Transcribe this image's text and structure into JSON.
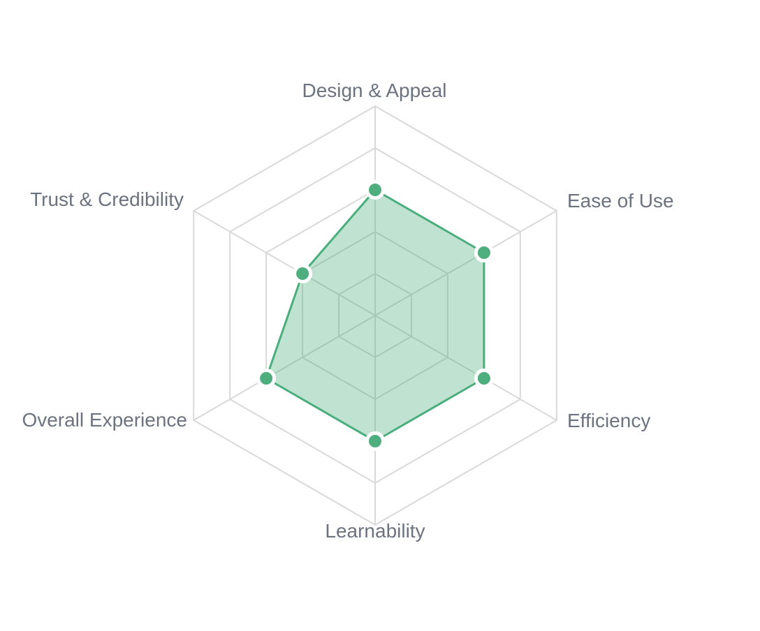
{
  "chart_data": {
    "type": "radar",
    "title": "",
    "categories": [
      "Design & Appeal",
      "Ease of Use",
      "Efficiency",
      "Learnability",
      "Overall Experience",
      "Trust & Credibility"
    ],
    "series": [
      {
        "values": [
          3,
          3,
          3,
          3,
          3,
          2
        ]
      }
    ],
    "scale": {
      "min": 0,
      "max": 5,
      "ring_count": 5,
      "tick_labels_visible": false
    },
    "grid": {
      "shape": "hexagon",
      "visible": true,
      "spokes_visible": true
    },
    "legend": {
      "visible": false
    },
    "colors": {
      "series_line": "#4aae7c",
      "series_fill": "rgba(74, 174, 124, 0.35)",
      "point_fill": "#4fae7e",
      "point_border": "#ffffff",
      "grid_line": "#d9d9d9",
      "axis_label": "#6b7280",
      "background": "#ffffff"
    }
  }
}
